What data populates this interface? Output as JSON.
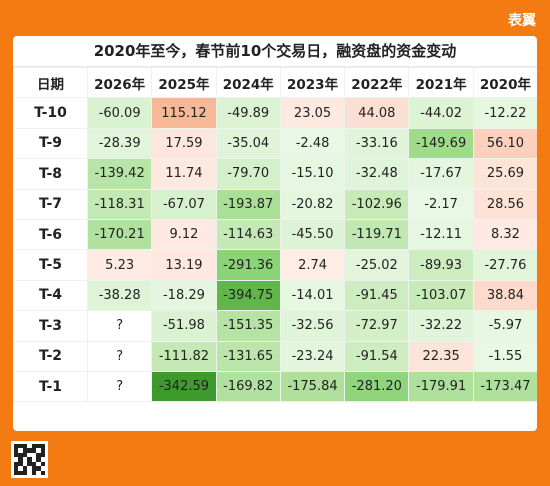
{
  "brand": "表翼",
  "table": {
    "title": "2020年至今，春节前10个交易日，融资盘的资金变动",
    "header": [
      "日期",
      "2026年",
      "2025年",
      "2024年",
      "2023年",
      "2022年",
      "2021年",
      "2020年"
    ],
    "rows": [
      {
        "label": "T-10",
        "cells": [
          "-60.09",
          "115.12",
          "-49.89",
          "23.05",
          "44.08",
          "-44.02",
          "-12.22"
        ],
        "colors": [
          "#d9f2d0",
          "#f6b896",
          "#dbf3d3",
          "#fde9e0",
          "#fcdfd3",
          "#dcf3d4",
          "#e5f7df"
        ]
      },
      {
        "label": "T-9",
        "cells": [
          "-28.39",
          "17.59",
          "-35.04",
          "-2.48",
          "-33.16",
          "-149.69",
          "56.10"
        ],
        "colors": [
          "#e1f5da",
          "#fde6dc",
          "#dff4d8",
          "#e9f8e4",
          "#e0f4d9",
          "#9fdc89",
          "#fbd0bd"
        ]
      },
      {
        "label": "T-8",
        "cells": [
          "-139.42",
          "11.74",
          "-79.70",
          "-15.10",
          "-32.48",
          "-17.67",
          "25.69"
        ],
        "colors": [
          "#b7e4a7",
          "#fee9e0",
          "#d4f0cb",
          "#e6f7e0",
          "#e0f4d9",
          "#e5f6df",
          "#fde4d8"
        ]
      },
      {
        "label": "T-7",
        "cells": [
          "-118.31",
          "-67.07",
          "-193.87",
          "-20.82",
          "-102.96",
          "-2.17",
          "28.56"
        ],
        "colors": [
          "#c2e9b3",
          "#d7f1cf",
          "#aadf97",
          "#e4f6de",
          "#c6eab8",
          "#e9f8e4",
          "#fde3d7"
        ]
      },
      {
        "label": "T-6",
        "cells": [
          "-170.21",
          "9.12",
          "-114.63",
          "-45.50",
          "-119.71",
          "-12.11",
          "8.32"
        ],
        "colors": [
          "#b0e19e",
          "#feeae2",
          "#c4e9b6",
          "#ddf3d6",
          "#c1e8b2",
          "#e6f7e0",
          "#feeae2"
        ]
      },
      {
        "label": "T-5",
        "cells": [
          "5.23",
          "13.19",
          "-291.36",
          "2.74",
          "-25.02",
          "-89.93",
          "-27.76"
        ],
        "colors": [
          "#feebe4",
          "#fee8df",
          "#8ad377",
          "#feece5",
          "#e2f5db",
          "#cdedc1",
          "#e1f5da"
        ]
      },
      {
        "label": "T-4",
        "cells": [
          "-38.28",
          "-18.29",
          "-394.75",
          "-14.01",
          "-91.45",
          "-103.07",
          "38.84"
        ],
        "colors": [
          "#def4d7",
          "#e4f6de",
          "#61b64a",
          "#e6f7e0",
          "#cdedc1",
          "#c6eab8",
          "#fcdbcc"
        ]
      },
      {
        "label": "T-3",
        "cells": [
          "?",
          "-51.98",
          "-151.35",
          "-32.56",
          "-72.97",
          "-32.22",
          "-5.97"
        ],
        "colors": [
          "#ffffff",
          "#daf2d2",
          "#b5e3a4",
          "#e0f4d9",
          "#d2efc8",
          "#e0f4d9",
          "#e8f7e2"
        ]
      },
      {
        "label": "T-2",
        "cells": [
          "?",
          "-111.82",
          "-131.65",
          "-23.24",
          "-91.54",
          "22.35",
          "-1.55"
        ],
        "colors": [
          "#ffffff",
          "#c4e9b6",
          "#bbe5ab",
          "#e3f6dd",
          "#cdedc1",
          "#fde4d9",
          "#e9f8e4"
        ]
      },
      {
        "label": "T-1",
        "cells": [
          "?",
          "-342.59",
          "-169.82",
          "-175.84",
          "-281.20",
          "-179.91",
          "-173.47"
        ],
        "colors": [
          "#ffffff",
          "#3f9a2e",
          "#b0e19e",
          "#aee09c",
          "#8ed57c",
          "#ade09b",
          "#afe19d"
        ]
      }
    ]
  }
}
